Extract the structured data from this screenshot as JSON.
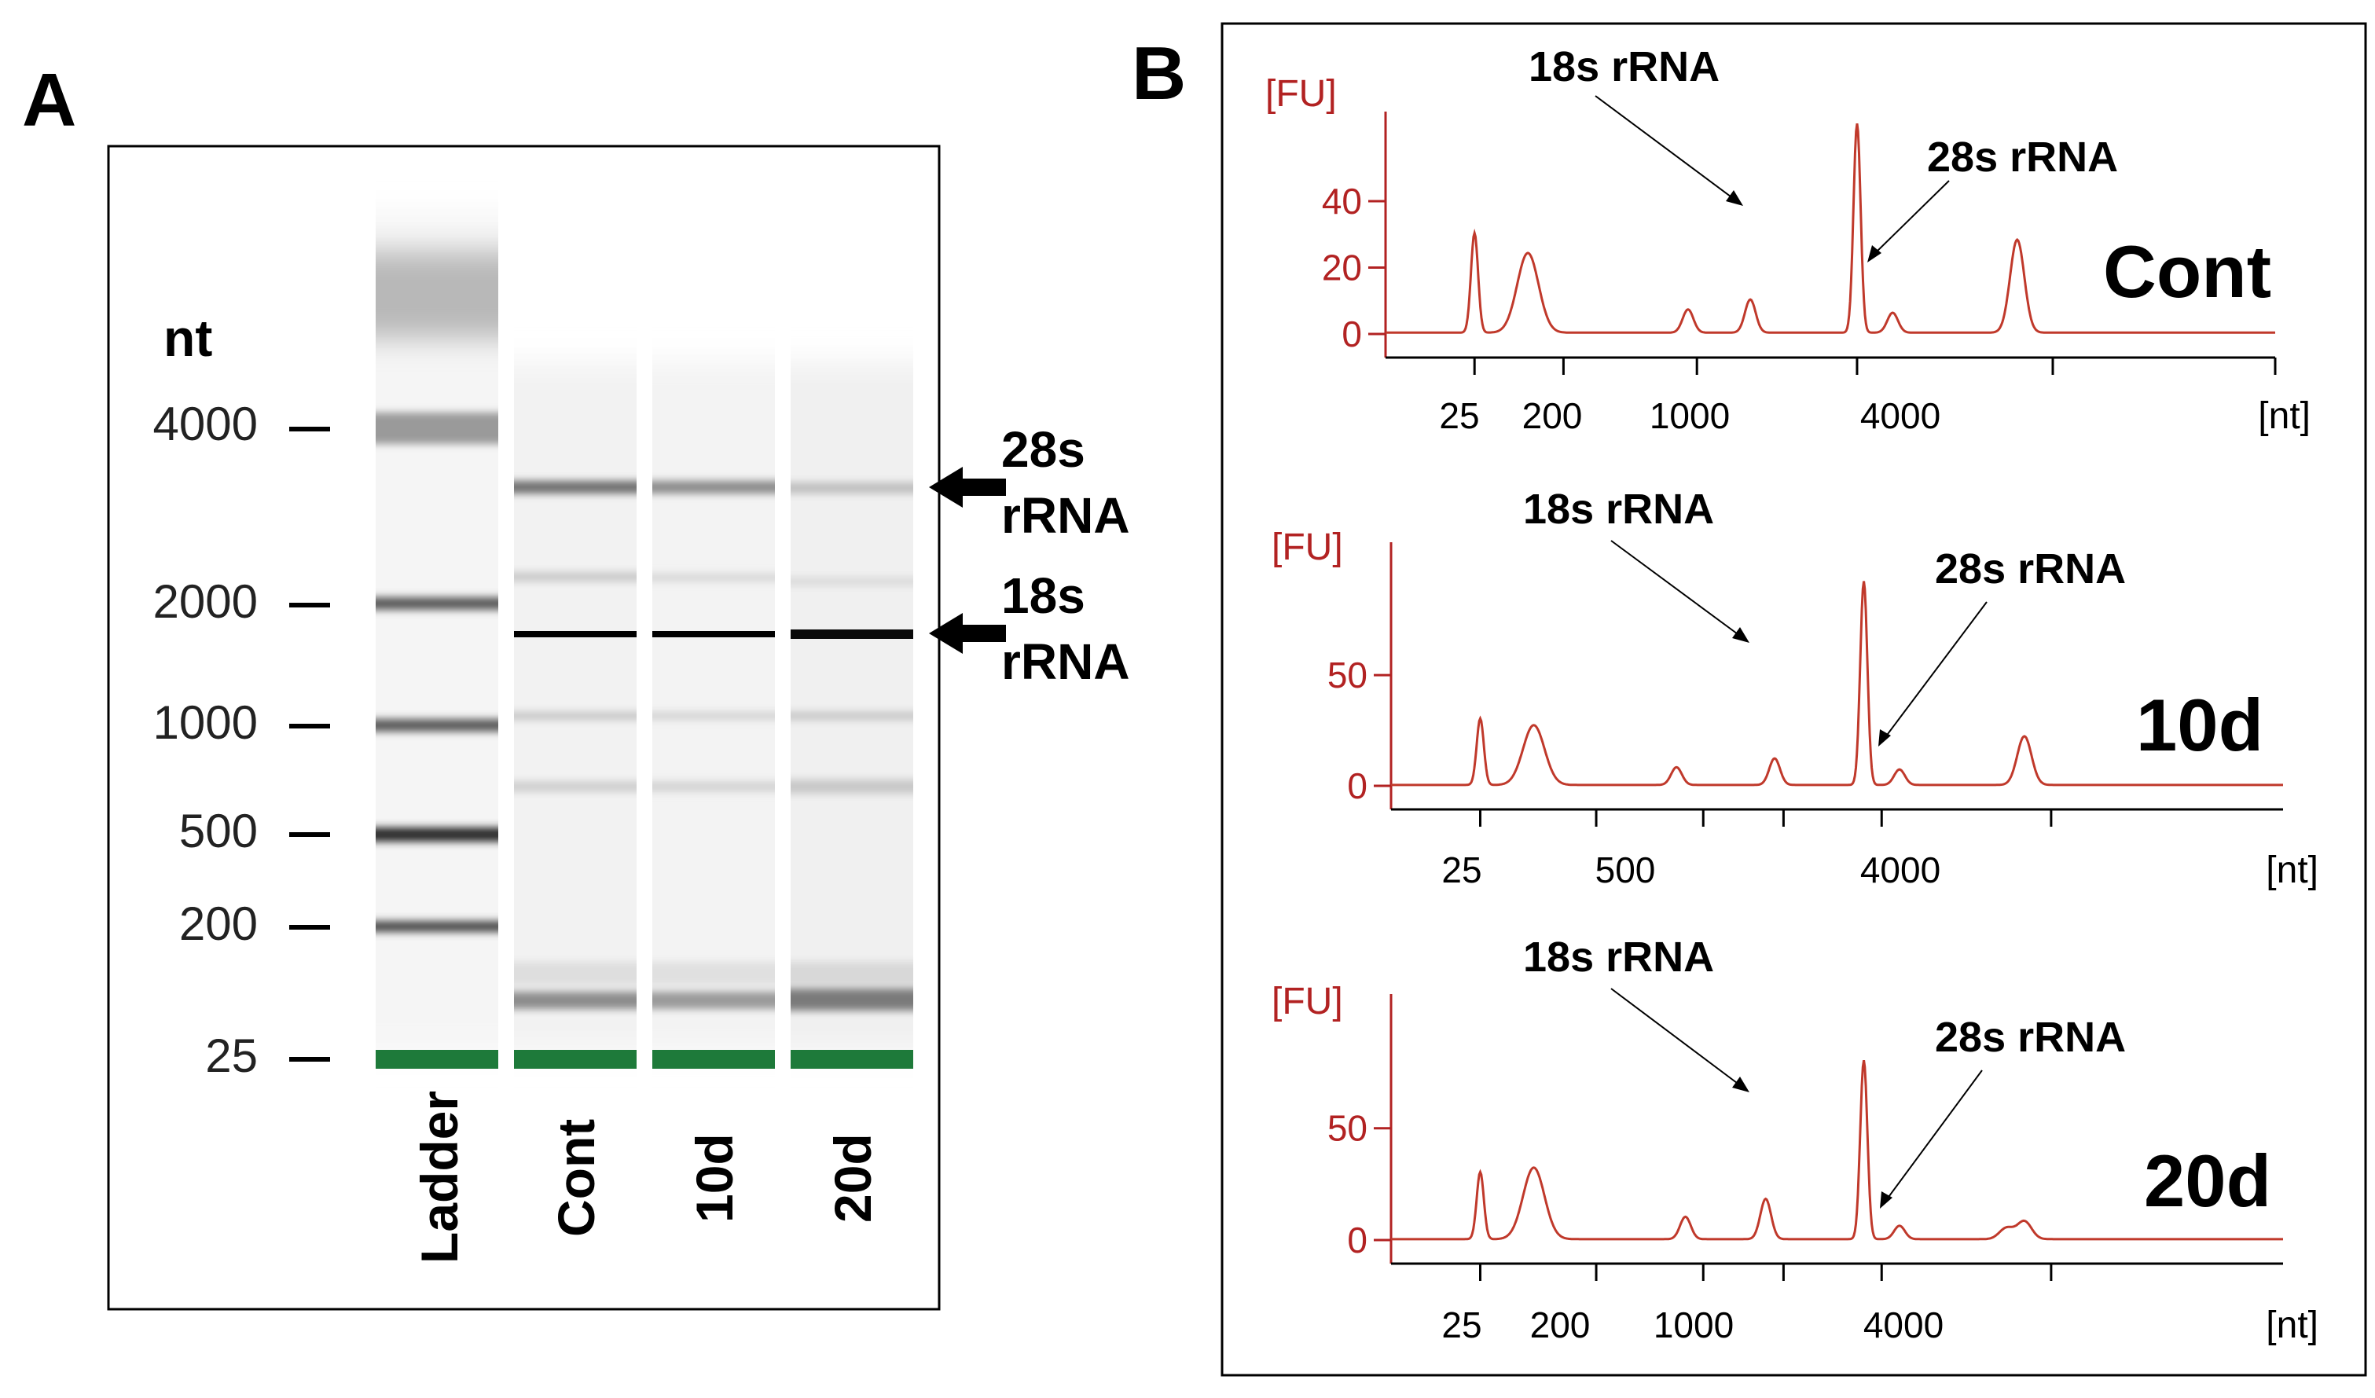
{
  "panel_a": {
    "label": "A",
    "axis_title": "nt",
    "ladder_labels": [
      "4000",
      "2000",
      "1000",
      "500",
      "200",
      "25"
    ],
    "lanes": [
      "Ladder",
      "Cont",
      "10d",
      "20d"
    ],
    "arrow_28s": {
      "line1": "28s",
      "line2": "rRNA"
    },
    "arrow_18s": {
      "line1": "18s",
      "line2": "rRNA"
    }
  },
  "panel_b": {
    "label": "B",
    "peak_18s": "18s rRNA",
    "peak_28s": "28s rRNA",
    "y_unit": "[FU]",
    "x_unit": "[nt]"
  },
  "colors": {
    "trace": "#c0392b",
    "axis_red": "#b22222",
    "marker_green": "#1e7a3a",
    "text": "#000000"
  },
  "chart_data": [
    {
      "type": "line",
      "name": "Cont",
      "title": "Cont",
      "ylabel": "[FU]",
      "xlabel": "[nt]",
      "yticks": [
        0,
        20,
        40
      ],
      "ylim": [
        0,
        67
      ],
      "xticks": [
        "25",
        "200",
        "1000",
        "4000"
      ],
      "x_ticks_pos": [
        0.1,
        0.2,
        0.35,
        0.53,
        0.75,
        1.0
      ],
      "peaks": [
        {
          "x": 0.1,
          "y": 30,
          "w": 0.004
        },
        {
          "x": 0.16,
          "y": 24,
          "w": 0.012
        },
        {
          "x": 0.34,
          "y": 7,
          "w": 0.006
        },
        {
          "x": 0.41,
          "y": 10,
          "w": 0.006
        },
        {
          "x": 0.53,
          "y": 63,
          "w": 0.004
        },
        {
          "x": 0.57,
          "y": 6,
          "w": 0.006
        },
        {
          "x": 0.71,
          "y": 28,
          "w": 0.008
        }
      ]
    },
    {
      "type": "line",
      "name": "10d",
      "title": "10d",
      "ylabel": "[FU]",
      "xlabel": "[nt]",
      "yticks": [
        0,
        50
      ],
      "ylim": [
        0,
        110
      ],
      "xticks": [
        "25",
        "500",
        "4000"
      ],
      "x_ticks_pos": [
        0.1,
        0.23,
        0.35,
        0.44,
        0.55,
        0.74
      ],
      "peaks": [
        {
          "x": 0.1,
          "y": 30,
          "w": 0.004
        },
        {
          "x": 0.16,
          "y": 27,
          "w": 0.012
        },
        {
          "x": 0.32,
          "y": 8,
          "w": 0.006
        },
        {
          "x": 0.43,
          "y": 12,
          "w": 0.006
        },
        {
          "x": 0.53,
          "y": 92,
          "w": 0.004
        },
        {
          "x": 0.57,
          "y": 7,
          "w": 0.006
        },
        {
          "x": 0.71,
          "y": 22,
          "w": 0.008
        }
      ]
    },
    {
      "type": "line",
      "name": "20d",
      "title": "20d",
      "ylabel": "[FU]",
      "xlabel": "[nt]",
      "yticks": [
        0,
        50
      ],
      "ylim": [
        0,
        110
      ],
      "xticks": [
        "25",
        "200",
        "1000",
        "4000"
      ],
      "x_ticks_pos": [
        0.1,
        0.23,
        0.35,
        0.44,
        0.55,
        0.74
      ],
      "peaks": [
        {
          "x": 0.1,
          "y": 30,
          "w": 0.004
        },
        {
          "x": 0.16,
          "y": 32,
          "w": 0.012
        },
        {
          "x": 0.33,
          "y": 10,
          "w": 0.006
        },
        {
          "x": 0.42,
          "y": 18,
          "w": 0.006
        },
        {
          "x": 0.53,
          "y": 80,
          "w": 0.004
        },
        {
          "x": 0.57,
          "y": 6,
          "w": 0.006
        },
        {
          "x": 0.69,
          "y": 5,
          "w": 0.008
        },
        {
          "x": 0.71,
          "y": 8,
          "w": 0.008
        }
      ]
    }
  ]
}
